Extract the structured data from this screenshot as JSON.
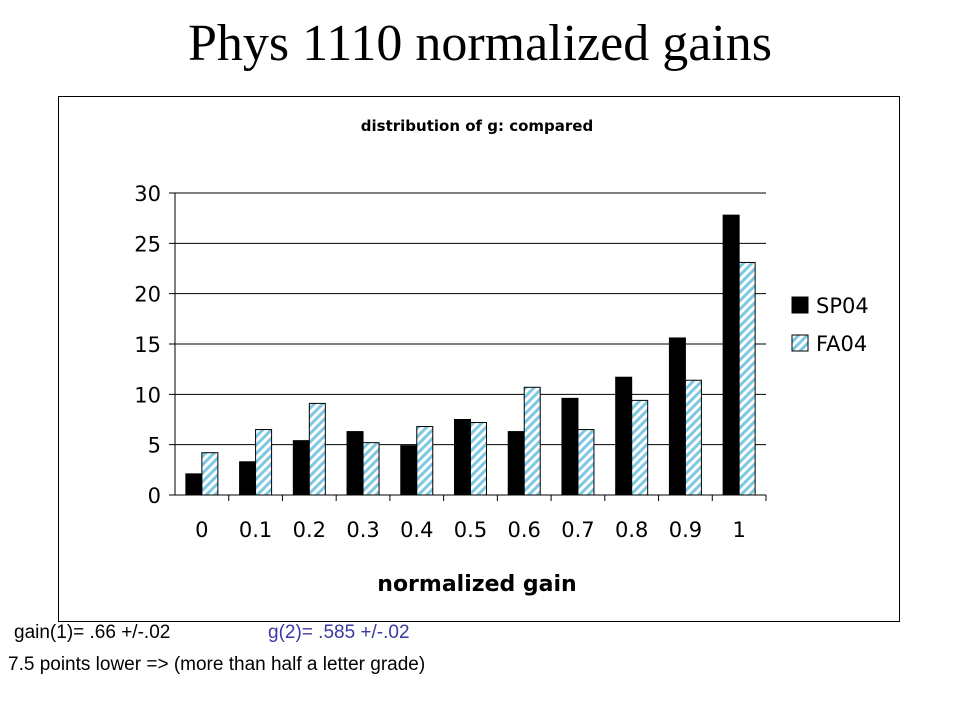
{
  "slide": {
    "title": "Phys 1110 normalized gains",
    "note_gain1": "gain(1)= .66 +/-.02",
    "note_g2": "g(2)= .585 +/-.02",
    "note_lower": "7.5 points lower => (more than half a letter grade)"
  },
  "chart_data": {
    "type": "bar",
    "title": "distribution of g: compared",
    "xlabel": "normalized gain",
    "ylabel": "",
    "categories": [
      "0",
      "0.1",
      "0.2",
      "0.3",
      "0.4",
      "0.5",
      "0.6",
      "0.7",
      "0.8",
      "0.9",
      "1"
    ],
    "ylim": [
      0,
      30
    ],
    "yticks": [
      "0",
      "5",
      "10",
      "15",
      "20",
      "25",
      "30"
    ],
    "grid": true,
    "legend_position": "right",
    "series": [
      {
        "name": "SP04",
        "color": "#000000",
        "pattern": "solid",
        "values": [
          2.1,
          3.3,
          5.4,
          6.3,
          4.9,
          7.5,
          6.3,
          9.6,
          11.7,
          15.6,
          27.8
        ]
      },
      {
        "name": "FA04",
        "color": "#7ec8e3",
        "pattern": "diagonal-hatch",
        "values": [
          4.2,
          6.5,
          9.1,
          5.2,
          6.8,
          7.2,
          10.7,
          6.5,
          9.4,
          11.4,
          23.1
        ]
      }
    ]
  }
}
